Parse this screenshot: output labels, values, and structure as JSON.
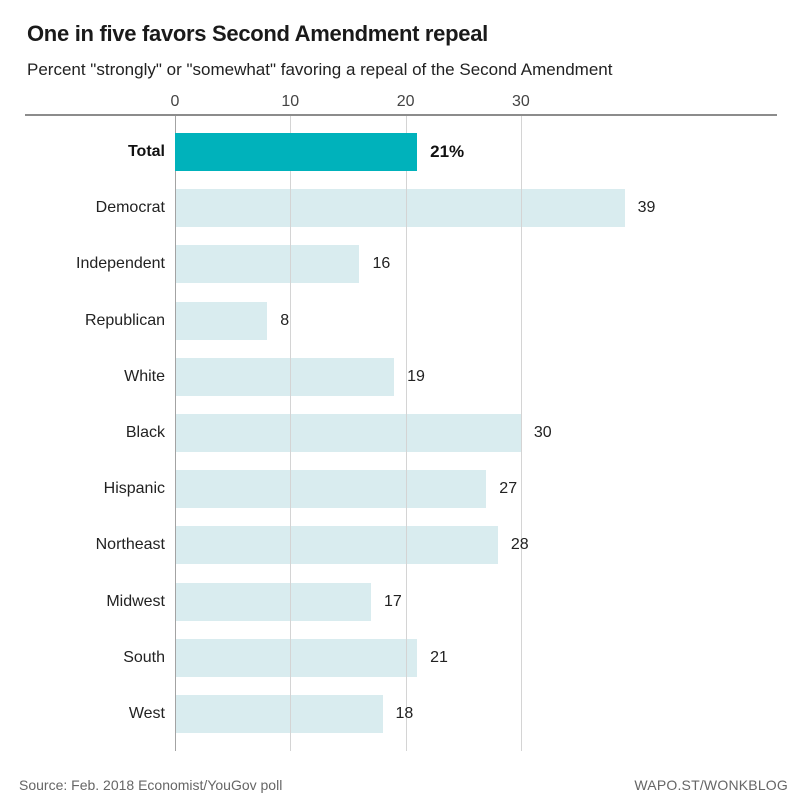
{
  "header": {
    "title": "One in five favors Second Amendment repeal",
    "subtitle": "Percent \"strongly\" or \"somewhat\" favoring a repeal of the Second Amendment"
  },
  "chart_data": {
    "type": "bar",
    "orientation": "horizontal",
    "title": "One in five favors Second Amendment repeal",
    "subtitle": "Percent \"strongly\" or \"somewhat\" favoring a repeal of the Second Amendment",
    "categories": [
      "Total",
      "Democrat",
      "Independent",
      "Republican",
      "White",
      "Black",
      "Hispanic",
      "Northeast",
      "Midwest",
      "South",
      "West"
    ],
    "values": [
      21,
      39,
      16,
      8,
      19,
      30,
      27,
      28,
      17,
      21,
      18
    ],
    "value_labels": [
      "21%",
      "39",
      "16",
      "8",
      "19",
      "30",
      "27",
      "28",
      "17",
      "21",
      "18"
    ],
    "highlight_category": "Total",
    "x_ticks": [
      0,
      10,
      20,
      30
    ],
    "xlim": [
      0,
      52
    ],
    "grid": "vertical-gridlines-on",
    "axis_position": "top",
    "colors": {
      "highlight_bar": "#00b2bb",
      "bar": "#d9ecef",
      "gridline": "#d4d4d4",
      "zero_line": "#a3a3a3",
      "axis_line": "#8c8c8c"
    }
  },
  "footer": {
    "source": "Source: Feb. 2018 Economist/YouGov poll",
    "credit": "WAPO.ST/WONKBLOG"
  }
}
